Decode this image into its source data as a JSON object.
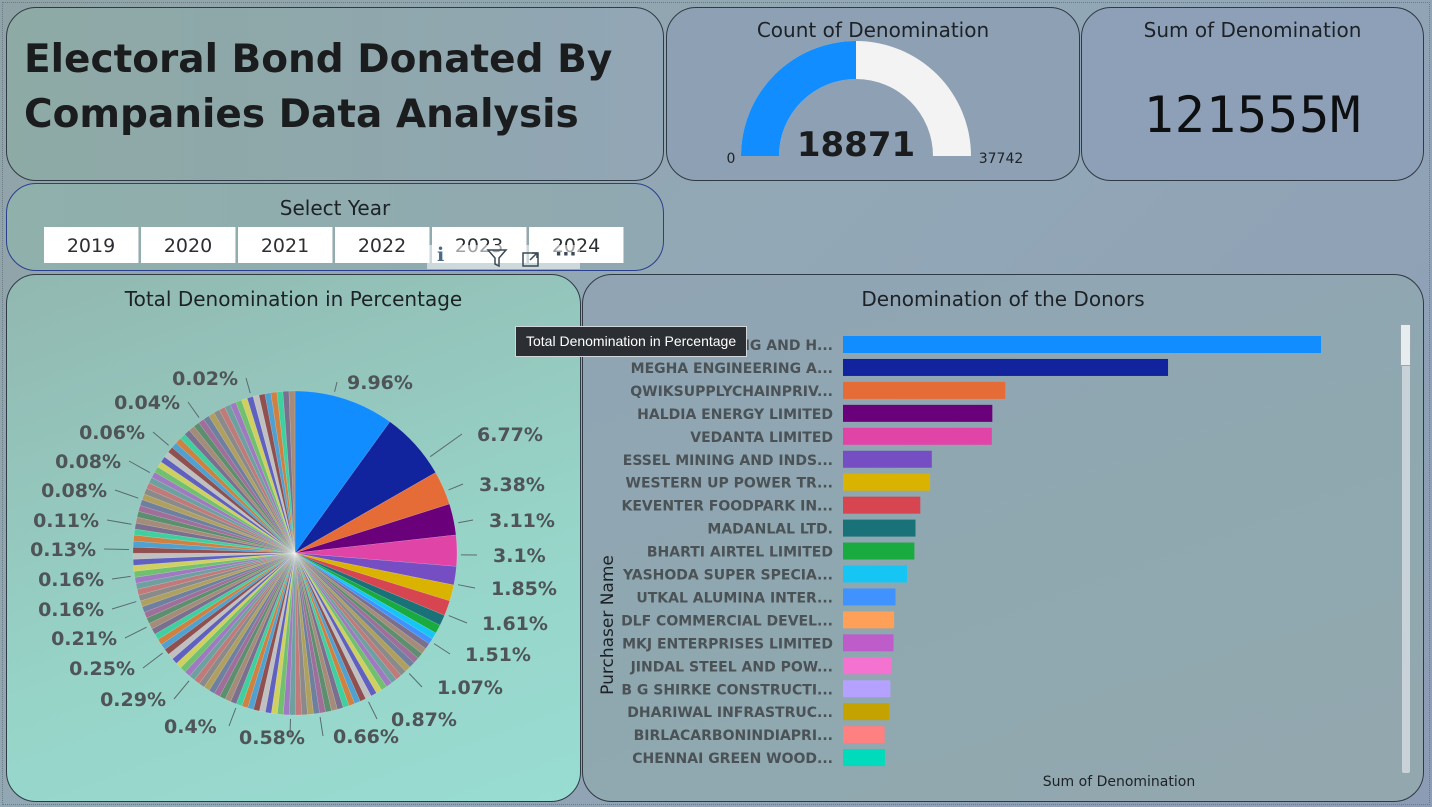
{
  "title": {
    "line1": "Electoral Bond Donated By",
    "line2": "Companies Data Analysis"
  },
  "count_card": {
    "title": "Count of Denomination",
    "value": "18871",
    "min": "0",
    "max": "37742",
    "fill_fraction": 0.5,
    "fill_color": "#118DFF",
    "track_color": "#F3F3F3"
  },
  "sum_card": {
    "title": "Sum of Denomination",
    "value": "121555M"
  },
  "year_slicer": {
    "title": "Select Year",
    "years": [
      "2019",
      "2020",
      "2021",
      "2022",
      "2023",
      "2024"
    ]
  },
  "header_icons": {
    "info": "i",
    "filter": "filter-icon",
    "focus": "focus-mode-icon",
    "more": "···"
  },
  "tooltip": "Total Denomination in Percentage",
  "colors": [
    "#118DFF",
    "#12239E",
    "#E66C37",
    "#6B007B",
    "#E044A7",
    "#744EC2",
    "#D9B300",
    "#D64550",
    "#197278",
    "#1AAB40",
    "#15C6F4",
    "#4092FF",
    "#FFA058",
    "#BE5DC9",
    "#F472D0",
    "#B5A1FF",
    "#C4A200",
    "#FF8080",
    "#00DBBC",
    "#5BD667"
  ],
  "chart_data": [
    {
      "type": "pie",
      "title": "Total Denomination in Percentage",
      "slices": [
        9.96,
        6.77,
        3.38,
        3.11,
        3.1,
        1.85,
        1.61,
        1.51,
        1.07,
        0.87,
        0.66,
        0.58,
        0.4,
        0.29,
        0.25,
        0.21,
        0.16,
        0.16,
        0.13,
        0.11,
        0.08,
        0.08,
        0.06,
        0.04,
        0.02
      ],
      "labels": [
        "9.96%",
        "6.77%",
        "3.38%",
        "3.11%",
        "3.1%",
        "1.85%",
        "1.61%",
        "1.51%",
        "1.07%",
        "0.87%",
        "0.66%",
        "0.58%",
        "0.4%",
        "0.29%",
        "0.25%",
        "0.21%",
        "0.16%",
        "0.16%",
        "0.13%",
        "0.11%",
        "0.08%",
        "0.08%",
        "0.06%",
        "0.04%",
        "0.02%"
      ]
    },
    {
      "type": "bar",
      "orientation": "horizontal",
      "title": "Denomination of the Donors",
      "ylabel": "Purchaser Name",
      "xlabel": "Sum of Denomination",
      "categories": [
        "FUTURE GAMING AND H...",
        "MEGHA ENGINEERING A...",
        "QWIKSUPPLYCHAINPRIV...",
        "HALDIA ENERGY LIMITED",
        "VEDANTA LIMITED",
        "ESSEL MINING AND INDS...",
        "WESTERN UP POWER TR...",
        "KEVENTER FOODPARK IN...",
        "MADANLAL LTD.",
        "BHARTI AIRTEL LIMITED",
        "YASHODA SUPER SPECIA...",
        "UTKAL ALUMINA INTER...",
        "DLF COMMERCIAL DEVEL...",
        "MKJ ENTERPRISES LIMITED",
        "JINDAL STEEL AND POW...",
        "B G SHIRKE CONSTRUCTI...",
        "DHARIWAL INFRASTRUC...",
        "BIRLACARBONINDIAPRI...",
        "CHENNAI GREEN WOOD..."
      ],
      "values": [
        12106,
        8232,
        4110,
        3782,
        3769,
        2249,
        2206,
        1958,
        1836,
        1808,
        1620,
        1330,
        1295,
        1280,
        1240,
        1200,
        1174,
        1053,
        1060
      ]
    }
  ]
}
